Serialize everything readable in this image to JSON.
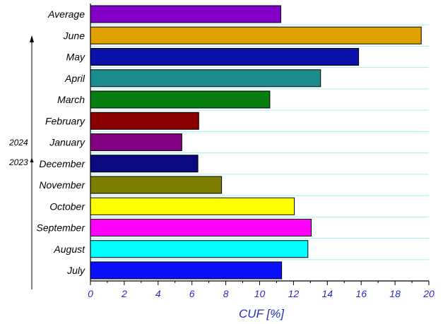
{
  "chart_data": {
    "type": "bar",
    "orientation": "horizontal",
    "xlabel": "CUF [%]",
    "ylabel": "",
    "xlim": [
      0,
      20
    ],
    "xticks": [
      0,
      2,
      4,
      6,
      8,
      10,
      12,
      14,
      16,
      18,
      20
    ],
    "grid": "horizontal lines",
    "year_labels": [
      "2024",
      "2023"
    ],
    "categories": [
      "Average",
      "June",
      "May",
      "April",
      "March",
      "February",
      "January",
      "December",
      "November",
      "October",
      "September",
      "August",
      "July"
    ],
    "values": [
      11.25,
      19.55,
      15.85,
      13.6,
      10.6,
      6.4,
      5.4,
      6.35,
      7.75,
      12.05,
      13.05,
      12.85,
      11.3
    ],
    "colors": [
      "#8200c8",
      "#e0a000",
      "#0a10a8",
      "#1a8c8c",
      "#087d12",
      "#8a0000",
      "#820082",
      "#0a0a80",
      "#7d7d00",
      "#ffff00",
      "#ff00ff",
      "#00ffff",
      "#0a10ff"
    ]
  }
}
